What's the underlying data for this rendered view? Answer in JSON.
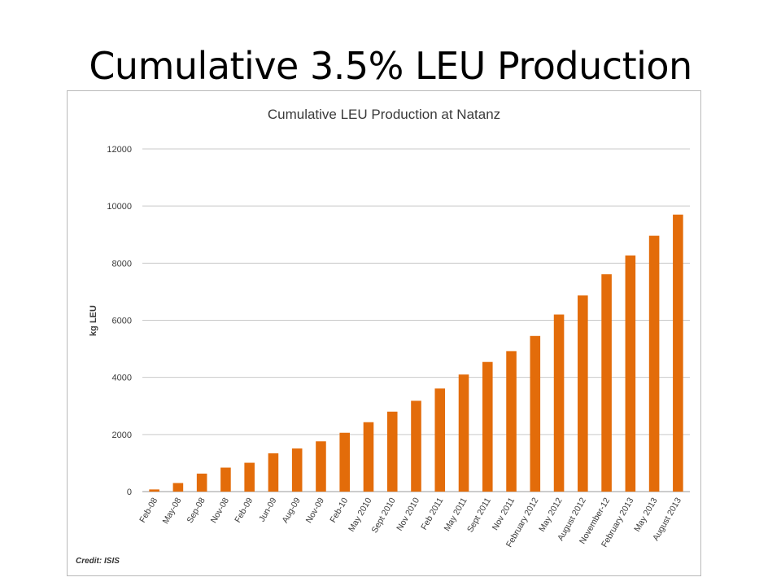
{
  "slide": {
    "title": "Cumulative 3.5% LEU Production"
  },
  "credit": "Credit: ISIS",
  "colors": {
    "bar": "#e36c0a",
    "grid": "#c9c9c9",
    "axis_text": "#3a3a3a"
  },
  "chart_data": {
    "type": "bar",
    "title": "Cumulative LEU Production at Natanz",
    "xlabel": "",
    "ylabel": "kg LEU",
    "ylim": [
      0,
      12000
    ],
    "yticks": [
      0,
      2000,
      4000,
      6000,
      8000,
      10000,
      12000
    ],
    "grid": true,
    "categories": [
      "Feb-08",
      "May-08",
      "Sep-08",
      "Nov-08",
      "Feb-09",
      "Jun-09",
      "Aug-09",
      "Nov-09",
      "Feb-10",
      "May 2010",
      "Sept 2010",
      "Nov 2010",
      "Feb 2011",
      "May 2011",
      "Sept 2011",
      "Nov 2011",
      "February 2012",
      "May 2012",
      "August 2012",
      "November-12",
      "February 2013",
      "May 2013",
      "August 2013"
    ],
    "values": [
      75,
      300,
      630,
      840,
      1010,
      1340,
      1510,
      1760,
      2060,
      2430,
      2800,
      3180,
      3610,
      4100,
      4540,
      4920,
      5450,
      6200,
      6870,
      7610,
      8270,
      8960,
      9700
    ]
  }
}
